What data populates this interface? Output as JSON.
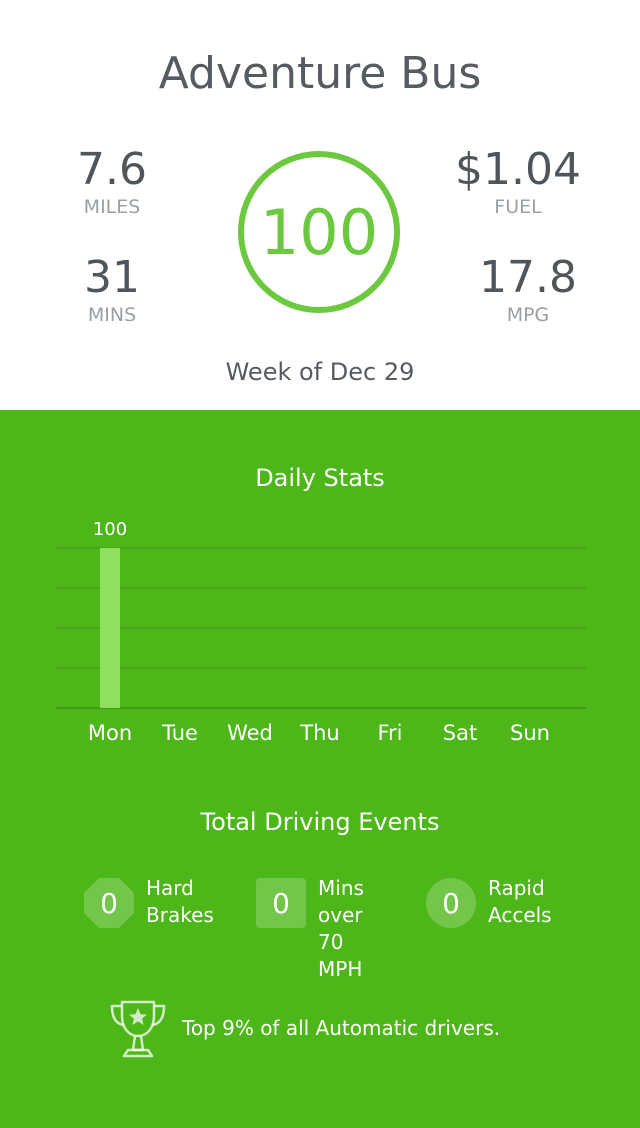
{
  "header": {
    "title": "Adventure Bus"
  },
  "stats": {
    "miles": {
      "value": "7.6",
      "label": "MILES"
    },
    "mins": {
      "value": "31",
      "label": "MINS"
    },
    "fuel": {
      "value": "$1.04",
      "label": "FUEL"
    },
    "mpg": {
      "value": "17.8",
      "label": "MPG"
    }
  },
  "score": {
    "value": "100"
  },
  "week_label": "Week of Dec 29",
  "colors": {
    "brand_green": "#4db618",
    "bar_green": "#90e060",
    "ring_green": "#6cc93f"
  },
  "daily_stats": {
    "title": "Daily Stats"
  },
  "chart_data": {
    "type": "bar",
    "categories": [
      "Mon",
      "Tue",
      "Wed",
      "Thu",
      "Fri",
      "Sat",
      "Sun"
    ],
    "values": [
      100,
      null,
      null,
      null,
      null,
      null,
      null
    ],
    "data_labels": [
      "100",
      "",
      "",
      "",
      "",
      "",
      ""
    ],
    "ylim": [
      0,
      100
    ],
    "grid": true
  },
  "events": {
    "title": "Total Driving Events",
    "items": [
      {
        "count": "0",
        "label": "Hard\nBrakes",
        "icon": "octagon-badge-icon"
      },
      {
        "count": "0",
        "label": "Mins over\n70 MPH",
        "icon": "square-badge-icon"
      },
      {
        "count": "0",
        "label": "Rapid\nAccels",
        "icon": "circle-badge-icon"
      }
    ]
  },
  "achievement": {
    "icon": "trophy-icon",
    "text": "Top 9% of all Automatic drivers."
  }
}
